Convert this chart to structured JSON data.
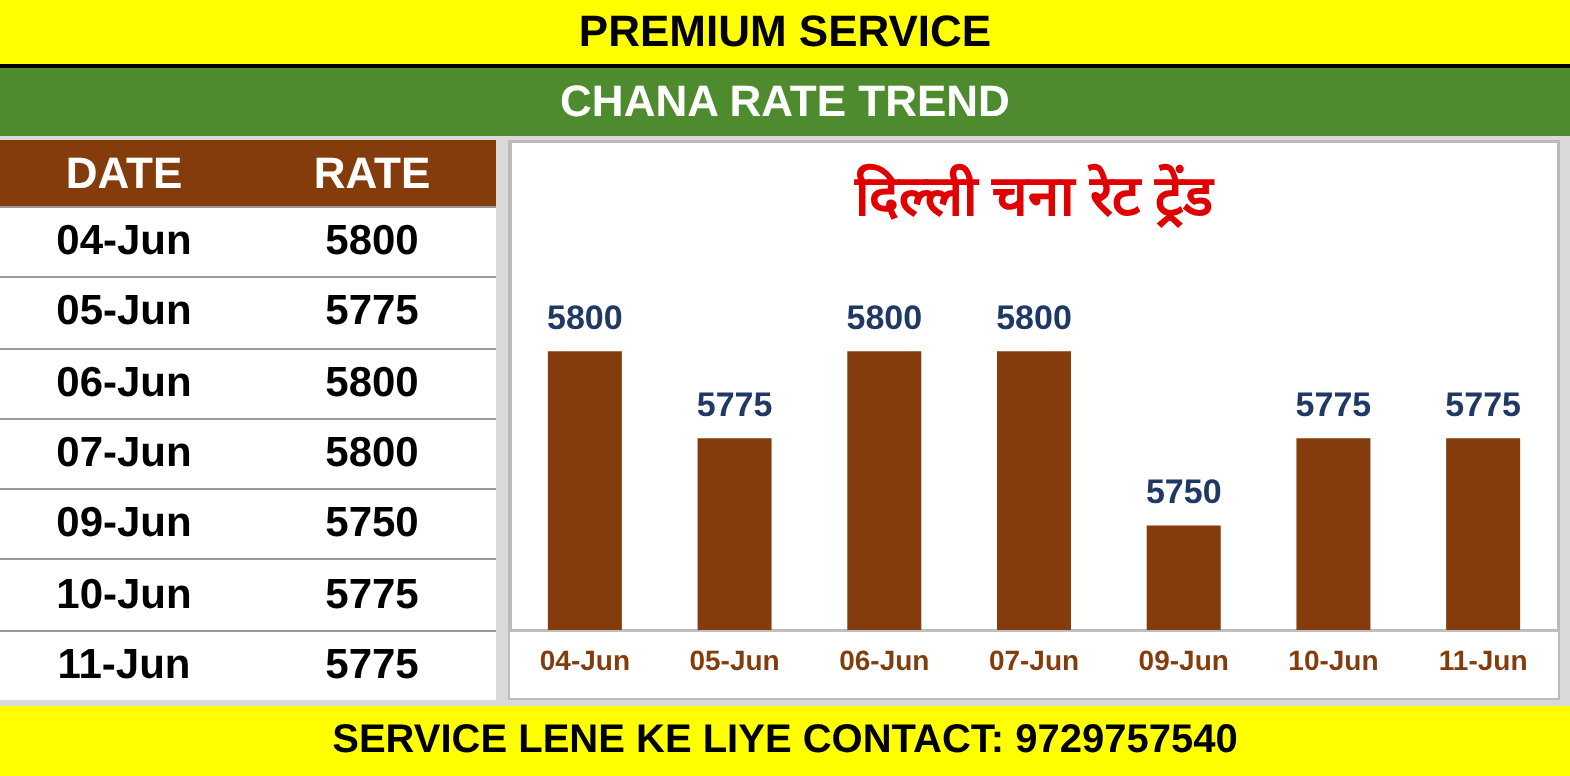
{
  "chart_data": {
    "type": "bar",
    "title": "दिल्ली चना रेट ट्रेंड",
    "subtitle": "CHANA RATE TREND",
    "annotations": [
      "PREMIUM SERVICE",
      "DATE",
      "RATE",
      "04-Jun",
      "5800",
      "05-Jun",
      "5775",
      "06-Jun",
      "5800",
      "07-Jun",
      "5800",
      "09-Jun",
      "5750",
      "10-Jun",
      "5775",
      "11-Jun",
      "5775",
      "SERVICE LENE KE LIYE CONTACT: 9729757540"
    ],
    "categories": [
      "04-Jun",
      "05-Jun",
      "06-Jun",
      "07-Jun",
      "09-Jun",
      "10-Jun",
      "11-Jun"
    ],
    "values": [
      5800,
      5775,
      5800,
      5800,
      5750,
      5775,
      5775
    ],
    "color": "#843c0c",
    "ylim": [
      5720,
      5860
    ],
    "tick_labels": "x",
    "data_labels": true
  }
}
